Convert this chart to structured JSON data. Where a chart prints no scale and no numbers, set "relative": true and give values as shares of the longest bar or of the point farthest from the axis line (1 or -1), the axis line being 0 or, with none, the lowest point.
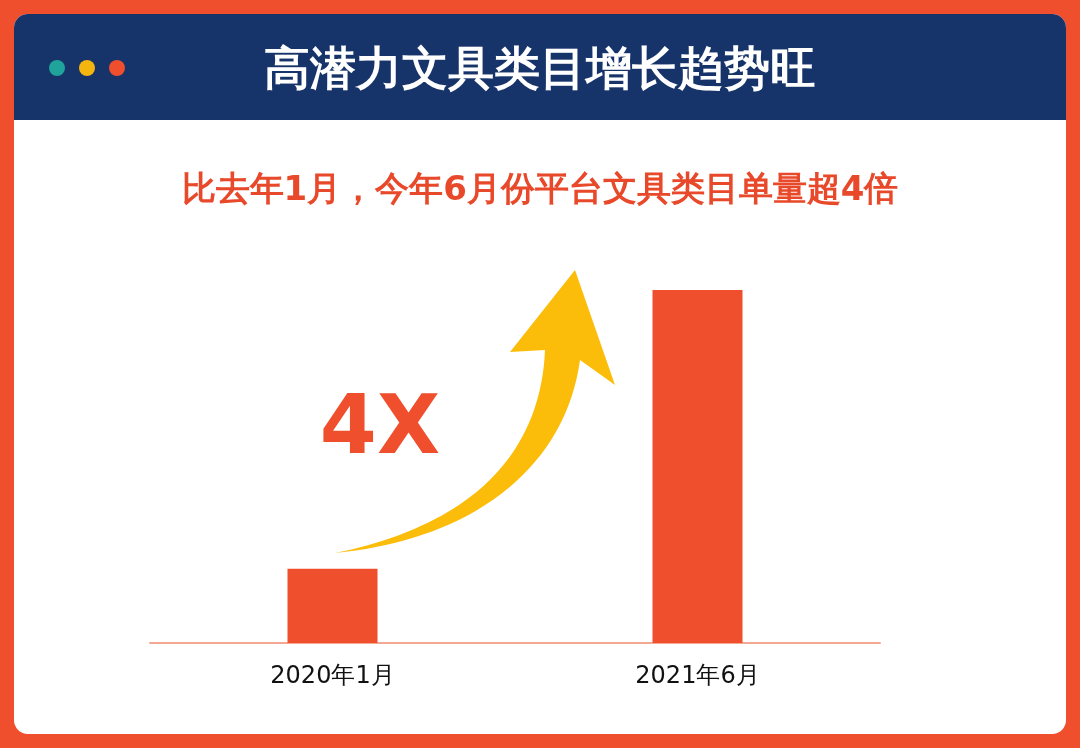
{
  "chart_data": {
    "type": "bar",
    "title": "高潜力文具类目增长趋势旺",
    "subtitle": "比去年1月，今年6月份平台文具类目单量超4倍",
    "categories": [
      "2020年1月",
      "2021年6月"
    ],
    "values": [
      0.21,
      1
    ],
    "color": "#ef4f2d",
    "relative": true,
    "grid": false,
    "annotations": [
      "4X"
    ]
  }
}
